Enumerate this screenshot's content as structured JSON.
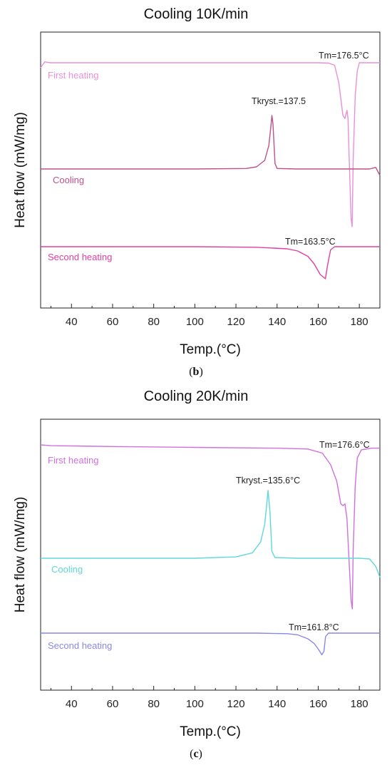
{
  "chart_data": [
    {
      "type": "line",
      "title": "Cooling 10K/min",
      "xlabel": "Temp.(°C)",
      "ylabel": "Heat flow (mW/mg)",
      "xlim": [
        25,
        190
      ],
      "xticks": [
        40,
        60,
        80,
        100,
        120,
        140,
        160,
        180
      ],
      "caption_letter": "b",
      "series": [
        {
          "name": "First heating",
          "color": "#e890d8",
          "points": [
            [
              25,
              -0.3
            ],
            [
              27,
              0.05
            ],
            [
              30,
              0
            ],
            [
              60,
              0
            ],
            [
              100,
              0
            ],
            [
              140,
              0
            ],
            [
              160,
              0
            ],
            [
              165,
              -0.02
            ],
            [
              168,
              -0.15
            ],
            [
              170,
              -1.2
            ],
            [
              172,
              -3.2
            ],
            [
              173,
              -3.4
            ],
            [
              174,
              -2.9
            ],
            [
              174.5,
              -3.4
            ],
            [
              175,
              -5.5
            ],
            [
              176,
              -9.5
            ],
            [
              176.5,
              -10
            ],
            [
              177,
              -6
            ],
            [
              178,
              -2
            ],
            [
              179,
              -0.5
            ],
            [
              180,
              0
            ],
            [
              183,
              0
            ],
            [
              190,
              0
            ]
          ]
        },
        {
          "name": "Cooling",
          "color": "#c0508a",
          "points": [
            [
              25,
              0
            ],
            [
              60,
              0
            ],
            [
              100,
              0
            ],
            [
              125,
              0.05
            ],
            [
              130,
              0.2
            ],
            [
              134,
              0.8
            ],
            [
              136,
              2.2
            ],
            [
              137,
              4
            ],
            [
              137.5,
              5
            ],
            [
              138,
              4.2
            ],
            [
              139,
              0.5
            ],
            [
              140,
              0.05
            ],
            [
              150,
              0
            ],
            [
              170,
              0
            ],
            [
              180,
              0
            ],
            [
              185,
              0
            ],
            [
              188,
              0.15
            ],
            [
              190,
              -0.6
            ]
          ]
        },
        {
          "name": "Second heating",
          "color": "#e040a0",
          "points": [
            [
              25,
              0
            ],
            [
              60,
              0
            ],
            [
              100,
              0
            ],
            [
              130,
              -0.05
            ],
            [
              145,
              -0.2
            ],
            [
              150,
              -0.4
            ],
            [
              155,
              -0.9
            ],
            [
              158,
              -1.6
            ],
            [
              161,
              -2.6
            ],
            [
              163.5,
              -3
            ],
            [
              164.5,
              -1.8
            ],
            [
              166,
              -0.3
            ],
            [
              168,
              0
            ],
            [
              180,
              0
            ],
            [
              190,
              0
            ]
          ]
        }
      ],
      "annotations": [
        {
          "text": "Tm=176.5°C",
          "x": 176.5
        },
        {
          "text": "Tkryst.=137.5",
          "x": 137.5
        },
        {
          "text": "Tm=163.5°C",
          "x": 163.5
        }
      ]
    },
    {
      "type": "line",
      "title": "Cooling 20K/min",
      "xlabel": "Temp.(°C)",
      "ylabel": "Heat flow (mW/mg)",
      "xlim": [
        25,
        190
      ],
      "xticks": [
        40,
        60,
        80,
        100,
        120,
        140,
        160,
        180
      ],
      "caption_letter": "c",
      "series": [
        {
          "name": "First heating",
          "color": "#d070e0",
          "points": [
            [
              25,
              0
            ],
            [
              30,
              -0.05
            ],
            [
              60,
              -0.1
            ],
            [
              100,
              -0.15
            ],
            [
              140,
              -0.2
            ],
            [
              155,
              -0.25
            ],
            [
              162,
              -0.5
            ],
            [
              166,
              -1.2
            ],
            [
              169,
              -2.2
            ],
            [
              171,
              -3.6
            ],
            [
              172,
              -3.7
            ],
            [
              173,
              -3.6
            ],
            [
              174,
              -4.5
            ],
            [
              175,
              -7
            ],
            [
              176,
              -9.5
            ],
            [
              176.6,
              -10
            ],
            [
              177,
              -6.5
            ],
            [
              178,
              -2.5
            ],
            [
              179,
              -0.8
            ],
            [
              181,
              -0.3
            ],
            [
              186,
              -0.2
            ],
            [
              190,
              -0.2
            ]
          ]
        },
        {
          "name": "Cooling",
          "color": "#60d8d8",
          "points": [
            [
              25,
              0
            ],
            [
              60,
              0
            ],
            [
              100,
              0
            ],
            [
              120,
              0.1
            ],
            [
              128,
              0.4
            ],
            [
              132,
              1.2
            ],
            [
              134,
              2.5
            ],
            [
              135,
              4
            ],
            [
              135.6,
              5
            ],
            [
              136.5,
              3.5
            ],
            [
              137.5,
              0.5
            ],
            [
              139,
              0.05
            ],
            [
              150,
              0
            ],
            [
              170,
              0
            ],
            [
              180,
              0
            ],
            [
              185,
              -0.05
            ],
            [
              188,
              -0.6
            ],
            [
              190,
              -1.4
            ]
          ]
        },
        {
          "name": "Second heating",
          "color": "#8888e8",
          "points": [
            [
              25,
              0
            ],
            [
              60,
              0
            ],
            [
              100,
              0
            ],
            [
              130,
              0
            ],
            [
              145,
              -0.05
            ],
            [
              150,
              -0.15
            ],
            [
              155,
              -0.5
            ],
            [
              158,
              -0.9
            ],
            [
              160,
              -1.4
            ],
            [
              161.8,
              -1.9
            ],
            [
              162.8,
              -1.6
            ],
            [
              163.6,
              -0.3
            ],
            [
              165,
              0
            ],
            [
              180,
              0
            ],
            [
              190,
              0
            ]
          ]
        }
      ],
      "annotations": [
        {
          "text": "Tm=176.6°C",
          "x": 176.6
        },
        {
          "text": "Tkryst.=135.6°C",
          "x": 135.6
        },
        {
          "text": "Tm=161.8°C",
          "x": 161.8
        }
      ]
    }
  ]
}
